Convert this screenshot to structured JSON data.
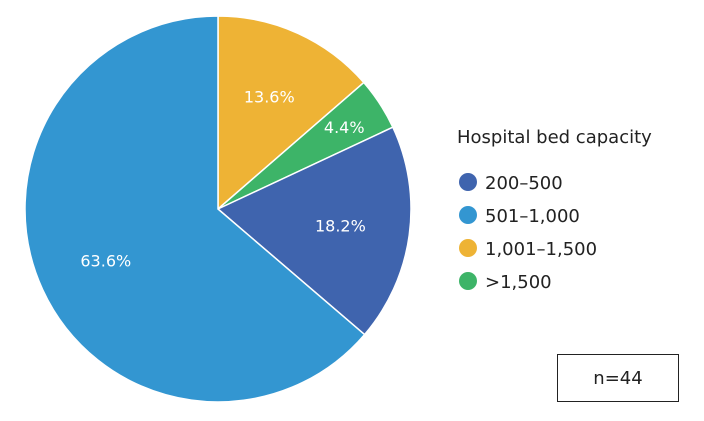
{
  "chart_data": {
    "type": "pie",
    "title": "",
    "legend_title": "Hospital bed capacity",
    "legend_position": "right",
    "slices": [
      {
        "name": "1,001–1,500",
        "value": 13.6,
        "label": "13.6%",
        "color": "#EEB335"
      },
      {
        "name": ">1,500",
        "value": 4.4,
        "label": "4.4%",
        "color": "#3DB468"
      },
      {
        "name": "200–500",
        "value": 18.2,
        "label": "18.2%",
        "color": "#3F64AE"
      },
      {
        "name": "501–1,000",
        "value": 63.6,
        "label": "63.6%",
        "color": "#3396D1"
      }
    ],
    "legend_order": [
      "200–500",
      "501–1,000",
      "1,001–1,500",
      ">1,500"
    ],
    "legend": [
      {
        "name": "200–500",
        "color": "#3F64AE"
      },
      {
        "name": "501–1,000",
        "color": "#3396D1"
      },
      {
        "name": "1,001–1,500",
        "color": "#EEB335"
      },
      {
        "name": ">1,500",
        "color": "#3DB468"
      }
    ],
    "annotation": "n=44"
  }
}
